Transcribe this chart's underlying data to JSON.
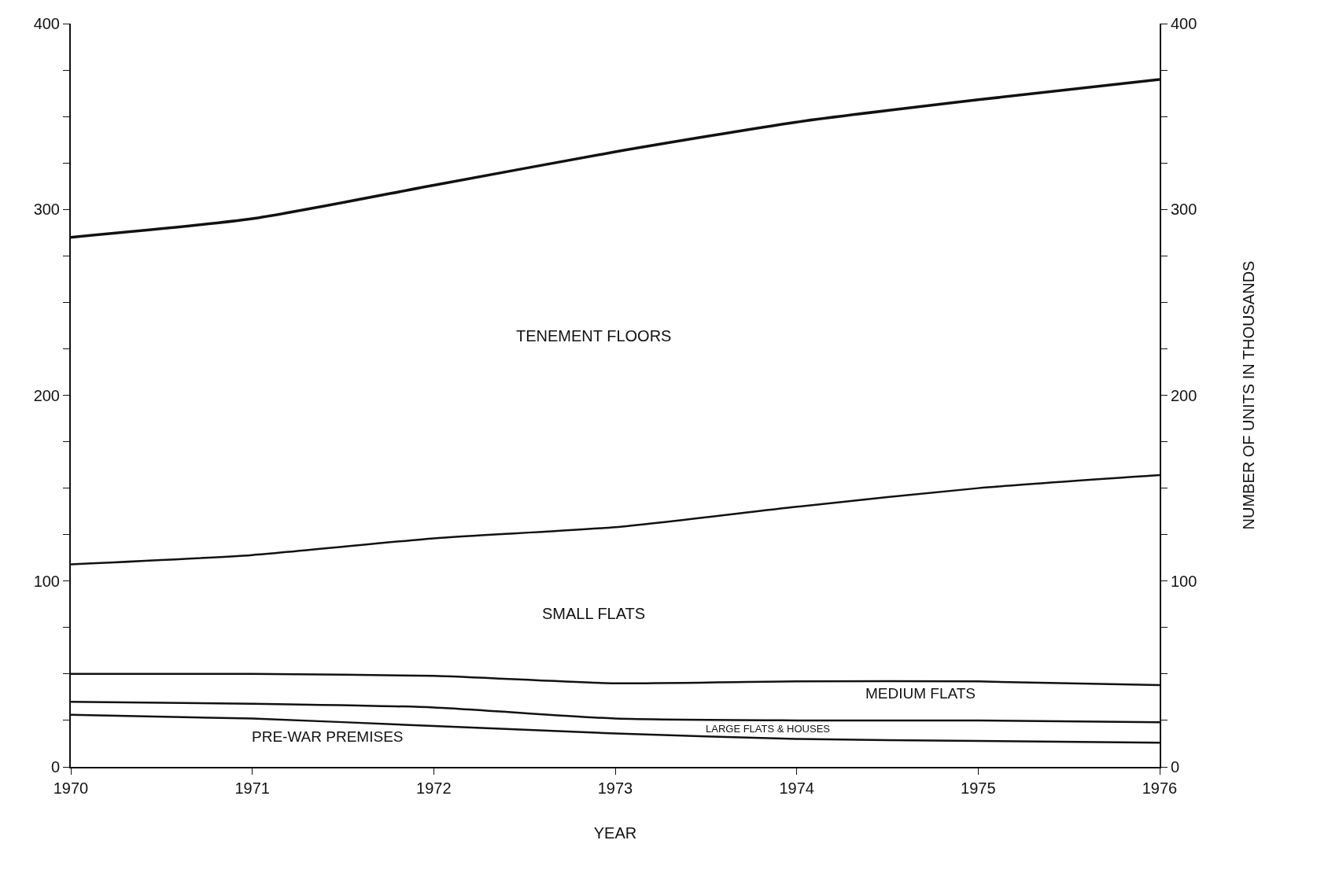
{
  "chart_data": {
    "type": "line",
    "x": [
      1970,
      1971,
      1972,
      1973,
      1974,
      1975,
      1976
    ],
    "series": [
      {
        "color": "#111111",
        "values": [
          285,
          295,
          313,
          331,
          347,
          359,
          370
        ]
      },
      {
        "color": "#111111",
        "values": [
          109,
          114,
          123,
          129,
          140,
          150,
          157
        ]
      },
      {
        "color": "#111111",
        "values": [
          50,
          50,
          49,
          45,
          46,
          46,
          44
        ]
      },
      {
        "color": "#111111",
        "values": [
          35,
          34,
          32,
          26,
          25,
          25,
          24
        ]
      },
      {
        "color": "#111111",
        "values": [
          28,
          26,
          22,
          18,
          15,
          14,
          13
        ]
      }
    ],
    "xlim": [
      1970,
      1976
    ],
    "xticks": [
      1970,
      1971,
      1972,
      1973,
      1974,
      1975,
      1976
    ],
    "ylim": [
      0,
      400
    ],
    "yticks": [
      0,
      {
        "value": 25,
        "label": null
      },
      {
        "value": 50,
        "label": null
      },
      {
        "value": 75,
        "label": null
      },
      100,
      {
        "value": 125,
        "label": null
      },
      {
        "value": 150,
        "label": null
      },
      {
        "value": 175,
        "label": null
      },
      200,
      {
        "value": 225,
        "label": null
      },
      {
        "value": 250,
        "label": null
      },
      {
        "value": 275,
        "label": null
      },
      300,
      {
        "value": 325,
        "label": null
      },
      {
        "value": 350,
        "label": null
      },
      {
        "value": 375,
        "label": null
      },
      400
    ],
    "y2lim": [
      0,
      400
    ],
    "y2ticks": [
      0,
      {
        "value": 25,
        "label": null
      },
      {
        "value": 50,
        "label": null
      },
      {
        "value": 75,
        "label": null
      },
      100,
      {
        "value": 125,
        "label": null
      },
      {
        "value": 150,
        "label": null
      },
      {
        "value": 175,
        "label": null
      },
      200,
      {
        "value": 225,
        "label": null
      },
      {
        "value": 250,
        "label": null
      },
      {
        "value": 275,
        "label": null
      },
      300,
      {
        "value": 325,
        "label": null
      },
      {
        "value": 350,
        "label": null
      },
      {
        "value": 375,
        "label": null
      },
      400
    ],
    "xlabel": "YEAR",
    "y2label": "NUMBER OF UNITS IN THOUSANDS",
    "annotations": [
      "TENEMENT FLOORS",
      "SMALL FLATS",
      "MEDIUM FLATS",
      "LARGE FLATS & HOUSES",
      "PRE-WAR PREMISES"
    ],
    "legend": false,
    "marker": "none",
    "line_style": "solid"
  }
}
